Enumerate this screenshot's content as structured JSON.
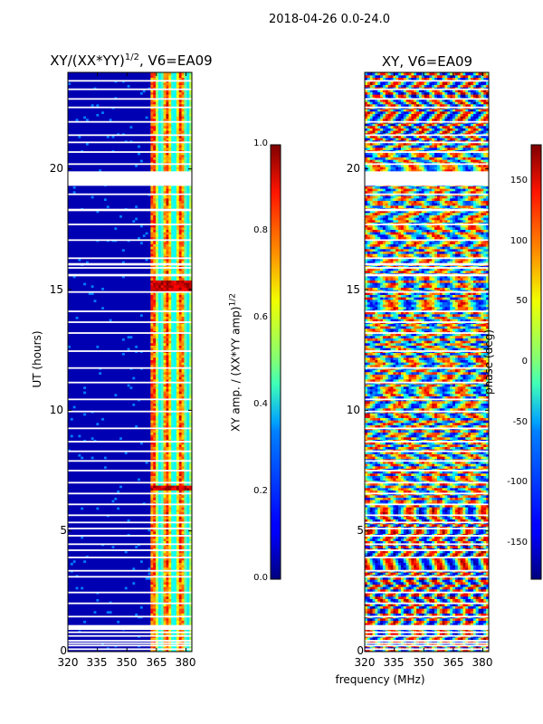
{
  "suptitle": "2018-04-26 0.0-24.0",
  "chart_data": [
    {
      "type": "heatmap",
      "title_main": "XY/(XX*YY)",
      "title_sup": "1/2",
      "title_rest": ", V6=EA09",
      "xlabel": "",
      "ylabel": "UT (hours)",
      "xlim": [
        320,
        383
      ],
      "ylim": [
        0,
        24
      ],
      "xticks": [
        "320",
        "335",
        "350",
        "365",
        "380"
      ],
      "yticks": [
        "0",
        "5",
        "10",
        "15",
        "20"
      ],
      "colorbar": {
        "label_main": "XY amp. / (XX*YY amp)",
        "label_sup": "1/2",
        "range": [
          0.0,
          1.0
        ],
        "ticks": [
          "0.0",
          "0.2",
          "0.4",
          "0.6",
          "0.8",
          "1.0"
        ],
        "colormap": "jet"
      },
      "description_values": {
        "low_band_level": 0.05,
        "high_band_start_mhz": 361,
        "high_band_level_min": 0.35,
        "high_band_level_max": 0.95
      }
    },
    {
      "type": "heatmap",
      "title": "XY, V6=EA09",
      "xlabel": "frequency (MHz)",
      "ylabel": "",
      "xlim": [
        320,
        383
      ],
      "ylim": [
        0,
        24
      ],
      "xticks": [
        "320",
        "335",
        "350",
        "365",
        "380"
      ],
      "yticks": [
        "0",
        "5",
        "10",
        "15",
        "20"
      ],
      "colorbar": {
        "label": "phase (deg)",
        "range": [
          -180,
          180
        ],
        "ticks": [
          "-150",
          "-100",
          "-50",
          "0",
          "50",
          "100",
          "150"
        ],
        "colormap": "jet"
      }
    }
  ],
  "data_gaps_hours": [
    0.1,
    0.25,
    0.35,
    0.45,
    0.65,
    0.8,
    1.45,
    2.0,
    2.45,
    3.1,
    3.35,
    3.9,
    4.2,
    4.45,
    4.8,
    5.1,
    5.35,
    5.65,
    6.1,
    6.55,
    7.0,
    7.5,
    7.9,
    8.3,
    8.7,
    9.25,
    9.95,
    10.45,
    11.15,
    11.75,
    12.45,
    13.2,
    13.65,
    14.1,
    14.9,
    15.9,
    16.3,
    17.05,
    17.7,
    18.3,
    18.95,
    19.35,
    19.8,
    20.2,
    20.7,
    21.1,
    21.4,
    21.95,
    22.55,
    22.9,
    23.3,
    23.65
  ]
}
